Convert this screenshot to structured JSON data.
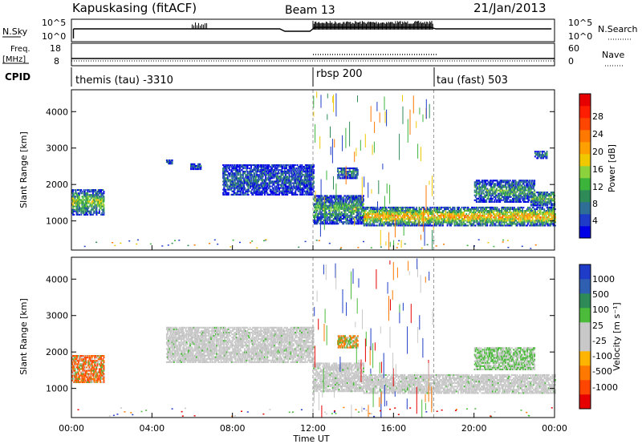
{
  "header": {
    "station_title": "Kapuskasing (fitACF)",
    "beam_label": "Beam 13",
    "date_label": "21/Jan/2013"
  },
  "top_panels": {
    "nsky": {
      "label": "N.Sky",
      "right_label": "N.Search",
      "ticks_left": [
        "10^5",
        "10^0"
      ],
      "ticks_right": [
        "10^5",
        "10^0"
      ]
    },
    "freq": {
      "label_line1": "Freq.",
      "label_line2": "[MHz]",
      "right_label": "Nave",
      "ticks_left": [
        "18",
        "8"
      ],
      "ticks_right": [
        "60",
        "0"
      ]
    },
    "cpid": {
      "label": "CPID",
      "segments": [
        {
          "name": "themis (tau) -3310",
          "start_hour": 0,
          "end_hour": 12
        },
        {
          "name": "rbsp 200",
          "start_hour": 12,
          "end_hour": 18
        },
        {
          "name": "tau (fast) 503",
          "start_hour": 18,
          "end_hour": 24
        }
      ]
    }
  },
  "chart_data": [
    {
      "type": "heatmap",
      "name": "power",
      "ylabel": "Slant Range [km]",
      "yticks": [
        1000,
        2000,
        3000,
        4000
      ],
      "ylim": [
        200,
        4600
      ],
      "xlim_hours": [
        0,
        24
      ],
      "colorbar": {
        "label": "Power [dB]",
        "ticks": [
          "4",
          "8",
          "12",
          "16",
          "20",
          "24",
          "28"
        ],
        "colors": [
          "#0000e6",
          "#1e3cc8",
          "#2f6e96",
          "#2e8b57",
          "#3cb43c",
          "#8cd23c",
          "#f0c800",
          "#ffa000",
          "#ff7800",
          "#ff4600",
          "#ff1e00",
          "#e60000"
        ]
      },
      "echo_regions": [
        {
          "t": [
            0.0,
            1.6
          ],
          "r": [
            1150,
            1850
          ],
          "level": 0.45
        },
        {
          "t": [
            4.7,
            5.0
          ],
          "r": [
            2550,
            2650
          ],
          "level": 0.2
        },
        {
          "t": [
            5.9,
            6.4
          ],
          "r": [
            2400,
            2550
          ],
          "level": 0.2
        },
        {
          "t": [
            7.5,
            12.0
          ],
          "r": [
            1700,
            2550
          ],
          "level": 0.2
        },
        {
          "t": [
            12.0,
            14.5
          ],
          "r": [
            900,
            1700
          ],
          "level": 0.35
        },
        {
          "t": [
            13.2,
            14.2
          ],
          "r": [
            2150,
            2450
          ],
          "level": 0.3
        },
        {
          "t": [
            14.5,
            24.0
          ],
          "r": [
            850,
            1350
          ],
          "level": 0.65
        },
        {
          "t": [
            20.0,
            23.0
          ],
          "r": [
            1500,
            2100
          ],
          "level": 0.35
        },
        {
          "t": [
            22.8,
            24.0
          ],
          "r": [
            1400,
            1800
          ],
          "level": 0.4
        },
        {
          "t": [
            23.0,
            23.6
          ],
          "r": [
            2700,
            2900
          ],
          "level": 0.25
        }
      ]
    },
    {
      "type": "heatmap",
      "name": "velocity",
      "xlabel": "Time UT",
      "ylabel": "Slant Range [km]",
      "xticks": [
        "00:00",
        "04:00",
        "08:00",
        "12:00",
        "16:00",
        "20:00",
        "00:00"
      ],
      "xtick_hours": [
        0,
        4,
        8,
        12,
        16,
        20,
        24
      ],
      "yticks": [
        1000,
        2000,
        3000,
        4000
      ],
      "ylim": [
        200,
        4600
      ],
      "colorbar": {
        "label": "Velocity [m s⁻¹]",
        "ticks": [
          "1000",
          "500",
          "100",
          "25",
          "-25",
          "-100",
          "-500",
          "-1000"
        ],
        "colors": [
          "#1e3cc8",
          "#2f5fb0",
          "#2e8b57",
          "#4cbb3c",
          "#c8c8c8",
          "#c8c8c8",
          "#ffb400",
          "#ff7800",
          "#ff4600",
          "#e60000"
        ]
      },
      "echo_regions": [
        {
          "t": [
            0.0,
            1.6
          ],
          "r": [
            1150,
            1900
          ],
          "kind": "mixed-red"
        },
        {
          "t": [
            4.7,
            12.0
          ],
          "r": [
            1700,
            2650
          ],
          "kind": "ground"
        },
        {
          "t": [
            12.0,
            14.5
          ],
          "r": [
            900,
            1700
          ],
          "kind": "ground"
        },
        {
          "t": [
            13.2,
            14.2
          ],
          "r": [
            2100,
            2450
          ],
          "kind": "orange-green"
        },
        {
          "t": [
            14.5,
            24.0
          ],
          "r": [
            850,
            1350
          ],
          "kind": "ground"
        },
        {
          "t": [
            20.0,
            23.0
          ],
          "r": [
            1500,
            2100
          ],
          "kind": "green-gray"
        }
      ]
    }
  ]
}
